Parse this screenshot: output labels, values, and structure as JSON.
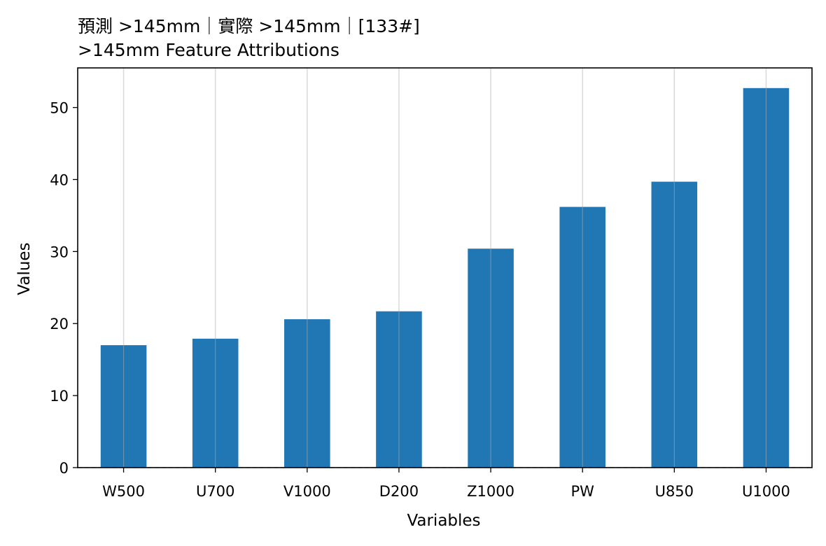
{
  "chart_data": {
    "type": "bar",
    "title_lines": [
      "預測 >145mm｜實際 >145mm｜[133#]",
      ">145mm Feature Attributions"
    ],
    "xlabel": "Variables",
    "ylabel": "Values",
    "categories": [
      "W500",
      "U700",
      "V1000",
      "D200",
      "Z1000",
      "PW",
      "U850",
      "U1000"
    ],
    "values": [
      17.0,
      17.9,
      20.6,
      21.7,
      30.4,
      36.2,
      39.7,
      52.7
    ],
    "ylim": [
      0,
      55.5
    ],
    "yticks": [
      0,
      10,
      20,
      30,
      40,
      50
    ],
    "grid": "vertical",
    "bar_color": "#2077b4",
    "baseline_style": "dashed"
  }
}
